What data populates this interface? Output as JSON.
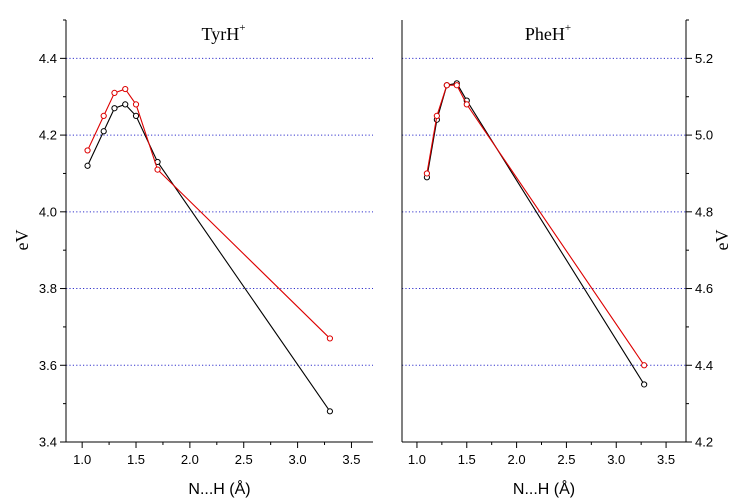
{
  "chart_data": [
    {
      "type": "line",
      "title": "TyrH",
      "title_superscript": "+",
      "xlabel": "N...H (Å)",
      "ylabel": "eV",
      "xlim": [
        0.85,
        3.7
      ],
      "ylim": [
        3.4,
        4.5
      ],
      "xticks": [
        1.0,
        1.5,
        2.0,
        2.5,
        3.0,
        3.5
      ],
      "xtick_labels": [
        "1.0",
        "1.5",
        "2.0",
        "2.5",
        "3.0",
        "3.5"
      ],
      "yticks": [
        3.4,
        3.6,
        3.8,
        4.0,
        4.2,
        4.4
      ],
      "ytick_labels": [
        "3.4",
        "3.6",
        "3.8",
        "4.0",
        "4.2",
        "4.4"
      ],
      "y_axis_side": "left",
      "grid": "horizontal dotted",
      "series": [
        {
          "color": "#000000",
          "x": [
            1.05,
            1.2,
            1.3,
            1.4,
            1.5,
            1.7,
            3.3
          ],
          "y": [
            4.12,
            4.21,
            4.27,
            4.28,
            4.25,
            4.13,
            3.48
          ]
        },
        {
          "color": "#dd0000",
          "x": [
            1.05,
            1.2,
            1.3,
            1.4,
            1.5,
            1.7,
            3.3
          ],
          "y": [
            4.16,
            4.25,
            4.31,
            4.32,
            4.28,
            4.11,
            3.67
          ]
        }
      ]
    },
    {
      "type": "line",
      "title": "PheH",
      "title_superscript": "+",
      "xlabel": "N...H (Å)",
      "ylabel": "eV",
      "xlim": [
        0.85,
        3.7
      ],
      "ylim": [
        4.2,
        5.3
      ],
      "xticks": [
        1.0,
        1.5,
        2.0,
        2.5,
        3.0,
        3.5
      ],
      "xtick_labels": [
        "1.0",
        "1.5",
        "2.0",
        "2.5",
        "3.0",
        "3.5"
      ],
      "yticks": [
        4.2,
        4.4,
        4.6,
        4.8,
        5.0,
        5.2
      ],
      "ytick_labels": [
        "4.2",
        "4.4",
        "4.6",
        "4.8",
        "5.0",
        "5.2"
      ],
      "y_axis_side": "right",
      "grid": "horizontal dotted",
      "series": [
        {
          "color": "#000000",
          "x": [
            1.1,
            1.2,
            1.3,
            1.4,
            1.5,
            3.28
          ],
          "y": [
            4.89,
            5.04,
            5.13,
            5.135,
            5.09,
            4.35
          ]
        },
        {
          "color": "#dd0000",
          "x": [
            1.1,
            1.2,
            1.3,
            1.4,
            1.5,
            3.28
          ],
          "y": [
            4.9,
            5.05,
            5.13,
            5.13,
            5.08,
            4.4
          ]
        }
      ]
    }
  ]
}
